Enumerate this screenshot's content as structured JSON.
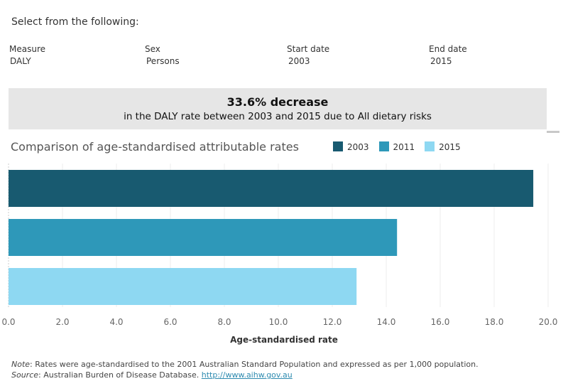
{
  "intro": "Select from the following:",
  "filters": [
    {
      "label": "Measure",
      "value": "DALY"
    },
    {
      "label": "Sex",
      "value": "Persons"
    },
    {
      "label": "Start date",
      "value": "2003"
    },
    {
      "label": "End date",
      "value": "2015"
    }
  ],
  "banner": {
    "headline": "33.6% decrease",
    "detail": "in the DALY rate between 2003 and 2015 due to All dietary risks"
  },
  "chart_data": {
    "type": "bar",
    "orientation": "horizontal",
    "title": "Comparison of age-standardised attributable rates",
    "xlabel": "Age-standardised rate",
    "xlim": [
      0,
      20
    ],
    "ticks": [
      "0.0",
      "2.0",
      "4.0",
      "6.0",
      "8.0",
      "10.0",
      "12.0",
      "14.0",
      "16.0",
      "18.0",
      "20.0"
    ],
    "grid": true,
    "legend_placement": "top-right",
    "series": [
      {
        "name": "2003",
        "value": 19.45,
        "color": "#185a70"
      },
      {
        "name": "2011",
        "value": 14.4,
        "color": "#2e98b9"
      },
      {
        "name": "2015",
        "value": 12.9,
        "color": "#8ed8f2"
      }
    ]
  },
  "footer": {
    "note_label": "Note",
    "note_text": ": Rates were age-standardised to the 2001 Australian Standard Population and expressed as per 1,000 population.",
    "source_label": "Source",
    "source_text": ": Australian Burden of Disease Database. ",
    "source_link": "http://www.aihw.gov.au"
  }
}
